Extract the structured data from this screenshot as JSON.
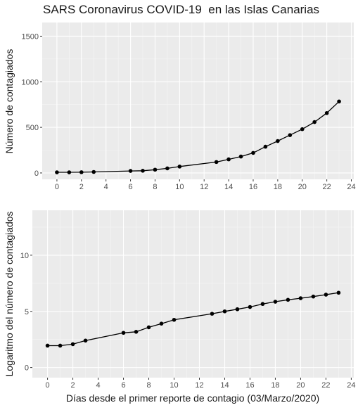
{
  "title": "SARS Coronavirus COVID-19  en las Islas Canarias",
  "xlabel": "Días desde el primer reporte de contagio (03/Marzo/2020)",
  "colors": {
    "panel": "#ebebeb",
    "grid_major": "#ffffff",
    "series": "#000000"
  },
  "chart_data": [
    {
      "type": "line",
      "ylabel": "Número de contagiados",
      "xlim": [
        -1.2,
        24.2
      ],
      "ylim": [
        -70,
        1650
      ],
      "xticks": [
        0,
        2,
        4,
        6,
        8,
        10,
        12,
        14,
        16,
        18,
        20,
        22,
        24
      ],
      "yticks": [
        0,
        500,
        1000,
        1500
      ],
      "grid": true,
      "series": [
        {
          "x": [
            0,
            1,
            2,
            3,
            6,
            7,
            8,
            9,
            10,
            13,
            14,
            15,
            16,
            17,
            18,
            19,
            20,
            21,
            22,
            23
          ],
          "y": [
            7,
            7,
            8,
            11,
            22,
            24,
            36,
            50,
            70,
            120,
            149,
            180,
            220,
            288,
            350,
            415,
            480,
            558,
            657,
            784
          ]
        }
      ]
    },
    {
      "type": "line",
      "ylabel": "Logaritmo del número de contagiados",
      "xlim": [
        -1.2,
        24.2
      ],
      "ylim": [
        -0.9,
        14
      ],
      "xticks": [
        0,
        2,
        4,
        6,
        8,
        10,
        12,
        14,
        16,
        18,
        20,
        22,
        24
      ],
      "yticks": [
        0,
        5,
        10
      ],
      "grid": true,
      "series": [
        {
          "x": [
            0,
            1,
            2,
            3,
            6,
            7,
            8,
            9,
            10,
            13,
            14,
            15,
            16,
            17,
            18,
            19,
            20,
            21,
            22,
            23
          ],
          "y": [
            1.95,
            1.95,
            2.08,
            2.4,
            3.09,
            3.18,
            3.58,
            3.91,
            4.25,
            4.79,
            5.0,
            5.19,
            5.39,
            5.66,
            5.86,
            6.03,
            6.17,
            6.32,
            6.49,
            6.66
          ]
        }
      ]
    }
  ]
}
